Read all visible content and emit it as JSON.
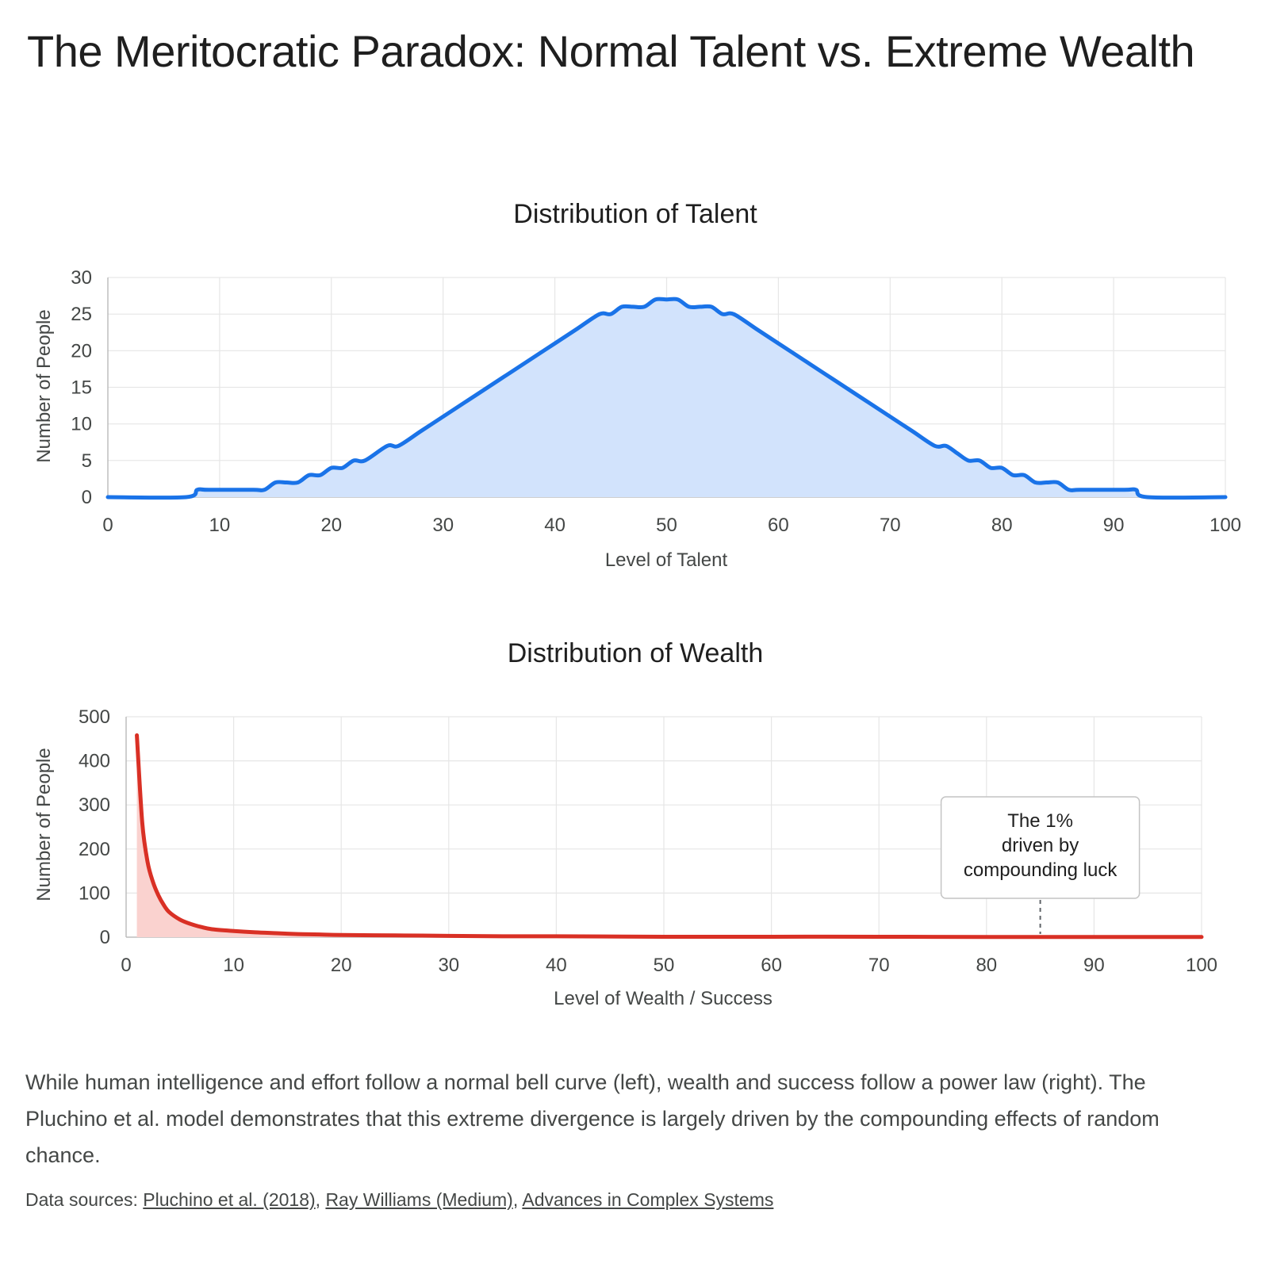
{
  "title": "The Meritocratic Paradox: Normal Talent vs. Extreme Wealth",
  "description": "While human intelligence and effort follow a normal bell curve (left), wealth and success follow a power law (right). The Pluchino et al. model demonstrates that this extreme divergence is largely driven by the compounding effects of random chance.",
  "sources": {
    "prefix": "Data sources: ",
    "links": [
      "Pluchino et al. (2018)",
      "Ray Williams (Medium)",
      "Advances in Complex Systems"
    ]
  },
  "chart_data": [
    {
      "type": "area",
      "title": "Distribution of Talent",
      "xlabel": "Level of Talent",
      "ylabel": "Number of People",
      "xlim": [
        0,
        100
      ],
      "ylim": [
        0,
        30
      ],
      "xticks": [
        0,
        10,
        20,
        30,
        40,
        50,
        60,
        70,
        80,
        90,
        100
      ],
      "yticks": [
        0,
        5,
        10,
        15,
        20,
        25,
        30
      ],
      "grid": true,
      "color": "#1a73e8",
      "fill": "#d2e3fc",
      "series": [
        {
          "x": [
            0,
            7,
            8,
            9,
            13,
            14,
            15,
            16,
            17,
            18,
            19,
            20,
            21,
            22,
            23,
            25,
            26,
            28,
            30,
            32,
            34,
            36,
            38,
            40,
            42,
            44,
            45,
            46,
            47,
            48,
            49,
            50,
            51,
            52,
            53,
            54,
            55,
            56,
            58,
            60,
            62,
            64,
            66,
            68,
            70,
            72,
            74,
            75,
            76,
            77,
            78,
            79,
            80,
            81,
            82,
            83,
            84,
            85,
            86,
            87,
            91,
            92,
            93,
            100
          ],
          "values": [
            0,
            0,
            1,
            1,
            1,
            1,
            2,
            2,
            2,
            3,
            3,
            4,
            4,
            5,
            5,
            7,
            7,
            9,
            11,
            13,
            15,
            17,
            19,
            21,
            23,
            25,
            25,
            26,
            26,
            26,
            27,
            27,
            27,
            26,
            26,
            26,
            25,
            25,
            23,
            21,
            19,
            17,
            15,
            13,
            11,
            9,
            7,
            7,
            6,
            5,
            5,
            4,
            4,
            3,
            3,
            2,
            2,
            2,
            1,
            1,
            1,
            1,
            0,
            0
          ]
        }
      ]
    },
    {
      "type": "area",
      "title": "Distribution of Wealth",
      "xlabel": "Level of Wealth / Success",
      "ylabel": "Number of People",
      "xlim": [
        0,
        100
      ],
      "ylim": [
        0,
        500
      ],
      "xticks": [
        0,
        10,
        20,
        30,
        40,
        50,
        60,
        70,
        80,
        90,
        100
      ],
      "yticks": [
        0,
        100,
        200,
        300,
        400,
        500
      ],
      "grid": true,
      "color": "#d93025",
      "fill": "#fad2cf",
      "series": [
        {
          "x": [
            1,
            1.5,
            2,
            2.5,
            3,
            3.5,
            4,
            5,
            6,
            7,
            8,
            10,
            12,
            14,
            16,
            18,
            20,
            25,
            30,
            35,
            40,
            50,
            60,
            70,
            80,
            90,
            100
          ],
          "values": [
            458,
            260,
            170,
            125,
            95,
            73,
            57,
            40,
            30,
            23,
            18,
            14,
            11,
            9,
            7,
            6,
            5,
            4,
            3,
            2,
            2,
            1,
            1,
            1,
            0.5,
            0.5,
            0.5
          ]
        }
      ],
      "annotation": {
        "text_lines": [
          "The 1%",
          "driven by",
          "compounding luck"
        ],
        "x": 85
      }
    }
  ]
}
